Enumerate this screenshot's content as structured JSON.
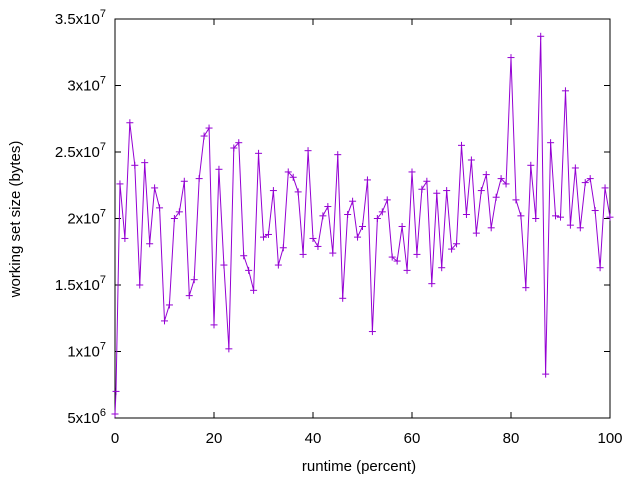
{
  "chart_data": {
    "type": "line",
    "title": "",
    "xlabel": "runtime (percent)",
    "ylabel": "working set size (bytes)",
    "xlim": [
      0,
      100
    ],
    "ylim": [
      5000000,
      35000000
    ],
    "grid": false,
    "legend": "none",
    "x_ticks": [
      {
        "value": 0,
        "label": "0"
      },
      {
        "value": 20,
        "label": "20"
      },
      {
        "value": 40,
        "label": "40"
      },
      {
        "value": 60,
        "label": "60"
      },
      {
        "value": 80,
        "label": "80"
      },
      {
        "value": 100,
        "label": "100"
      }
    ],
    "y_ticks": [
      {
        "value": 5000000,
        "mantissa": "5x10",
        "exponent": "6"
      },
      {
        "value": 10000000,
        "mantissa": "1x10",
        "exponent": "7"
      },
      {
        "value": 15000000,
        "mantissa": "1.5x10",
        "exponent": "7"
      },
      {
        "value": 20000000,
        "mantissa": "2x10",
        "exponent": "7"
      },
      {
        "value": 25000000,
        "mantissa": "2.5x10",
        "exponent": "7"
      },
      {
        "value": 30000000,
        "mantissa": "3x10",
        "exponent": "7"
      },
      {
        "value": 35000000,
        "mantissa": "3.5x10",
        "exponent": "7"
      }
    ],
    "series": [
      {
        "color": "#9400d3",
        "marker": "plus",
        "x": [
          0,
          0.2,
          1,
          2,
          3,
          4,
          5,
          6,
          7,
          8,
          9,
          10,
          11,
          12,
          13,
          14,
          15,
          16,
          17,
          18,
          19,
          20,
          21,
          22,
          23,
          24,
          25,
          26,
          27,
          28,
          29,
          30,
          31,
          32,
          33,
          34,
          35,
          36,
          37,
          38,
          39,
          40,
          41,
          42,
          43,
          44,
          45,
          46,
          47,
          48,
          49,
          50,
          51,
          52,
          53,
          54,
          55,
          56,
          57,
          58,
          59,
          60,
          61,
          62,
          63,
          64,
          65,
          66,
          67,
          68,
          69,
          70,
          71,
          72,
          73,
          74,
          75,
          76,
          77,
          78,
          79,
          80,
          81,
          82,
          83,
          84,
          85,
          86,
          87,
          88,
          89,
          90,
          91,
          92,
          93,
          94,
          95,
          96,
          97,
          98,
          99,
          100
        ],
        "y": [
          5300000,
          7000000,
          22600000,
          18500000,
          27200000,
          24000000,
          15000000,
          24200000,
          18100000,
          22300000,
          20800000,
          12300000,
          13500000,
          20000000,
          20500000,
          22800000,
          14200000,
          15400000,
          23000000,
          26200000,
          26800000,
          12000000,
          23700000,
          16500000,
          10200000,
          25300000,
          25700000,
          17200000,
          16100000,
          14600000,
          24900000,
          18600000,
          18800000,
          22100000,
          16500000,
          17800000,
          23500000,
          23100000,
          22000000,
          17300000,
          25100000,
          18500000,
          17900000,
          20200000,
          20900000,
          17400000,
          24800000,
          14000000,
          20300000,
          21300000,
          18600000,
          19400000,
          22900000,
          11500000,
          20000000,
          20500000,
          21400000,
          17100000,
          16800000,
          19400000,
          16100000,
          23500000,
          17300000,
          22200000,
          22800000,
          15100000,
          21900000,
          16300000,
          22100000,
          17700000,
          18100000,
          25500000,
          20300000,
          24400000,
          18900000,
          22100000,
          23300000,
          19300000,
          21600000,
          23000000,
          22600000,
          32100000,
          21400000,
          20200000,
          14800000,
          24000000,
          20000000,
          33700000,
          8300000,
          25700000,
          20200000,
          20100000,
          29600000,
          19500000,
          23800000,
          19300000,
          22700000,
          23000000,
          20600000,
          16300000,
          22300000,
          20100000
        ]
      }
    ]
  }
}
